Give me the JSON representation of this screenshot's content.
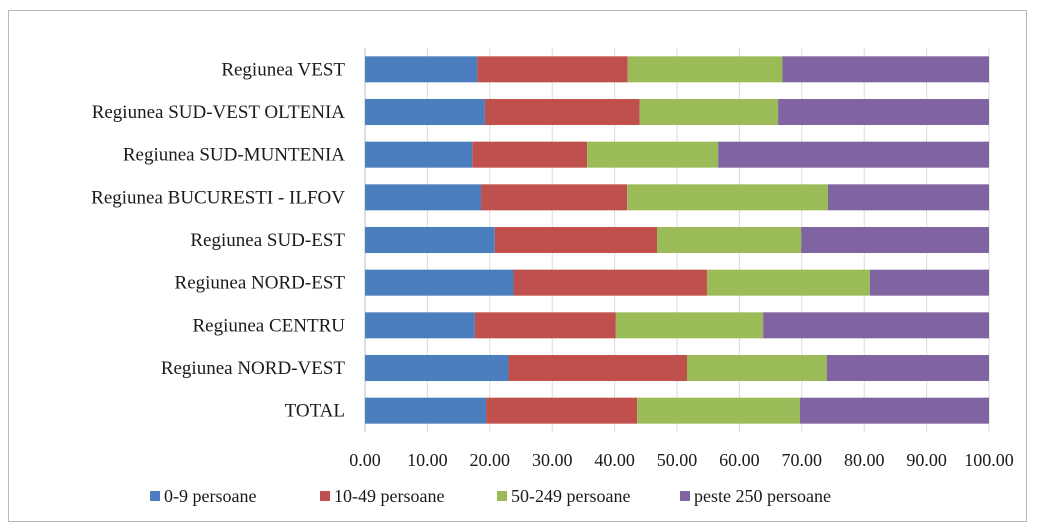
{
  "chart_data": {
    "type": "bar",
    "orientation": "horizontal",
    "stacked": true,
    "categories": [
      "Regiunea VEST",
      "Regiunea SUD-VEST OLTENIA",
      "Regiunea SUD-MUNTENIA",
      "Regiunea BUCURESTI - ILFOV",
      "Regiunea SUD-EST",
      "Regiunea NORD-EST",
      "Regiunea CENTRU",
      "Regiunea NORD-VEST",
      "TOTAL"
    ],
    "series": [
      {
        "name": "0-9 persoane",
        "color": "#4a7ebf",
        "values": [
          18.0,
          19.2,
          17.2,
          18.6,
          20.8,
          23.8,
          17.6,
          23.0,
          19.4
        ]
      },
      {
        "name": "10-49 persoane",
        "color": "#c0504d",
        "values": [
          24.1,
          24.8,
          18.4,
          23.4,
          26.0,
          31.0,
          22.6,
          28.6,
          24.2
        ]
      },
      {
        "name": "50-249 persoane",
        "color": "#9bbb59",
        "values": [
          24.8,
          22.2,
          21.0,
          32.2,
          23.1,
          26.1,
          23.6,
          22.4,
          26.1
        ]
      },
      {
        "name": "peste 250 persoane",
        "color": "#8064a2",
        "values": [
          33.1,
          33.8,
          43.4,
          25.8,
          30.1,
          19.1,
          36.2,
          26.0,
          30.3
        ]
      }
    ],
    "x_ticks": [
      "0.00",
      "10.00",
      "20.00",
      "30.00",
      "40.00",
      "50.00",
      "60.00",
      "70.00",
      "80.00",
      "90.00",
      "100.00"
    ],
    "xlim": [
      0,
      100
    ],
    "grid": true,
    "legend_position": "bottom",
    "title": "",
    "xlabel": "",
    "ylabel": ""
  }
}
